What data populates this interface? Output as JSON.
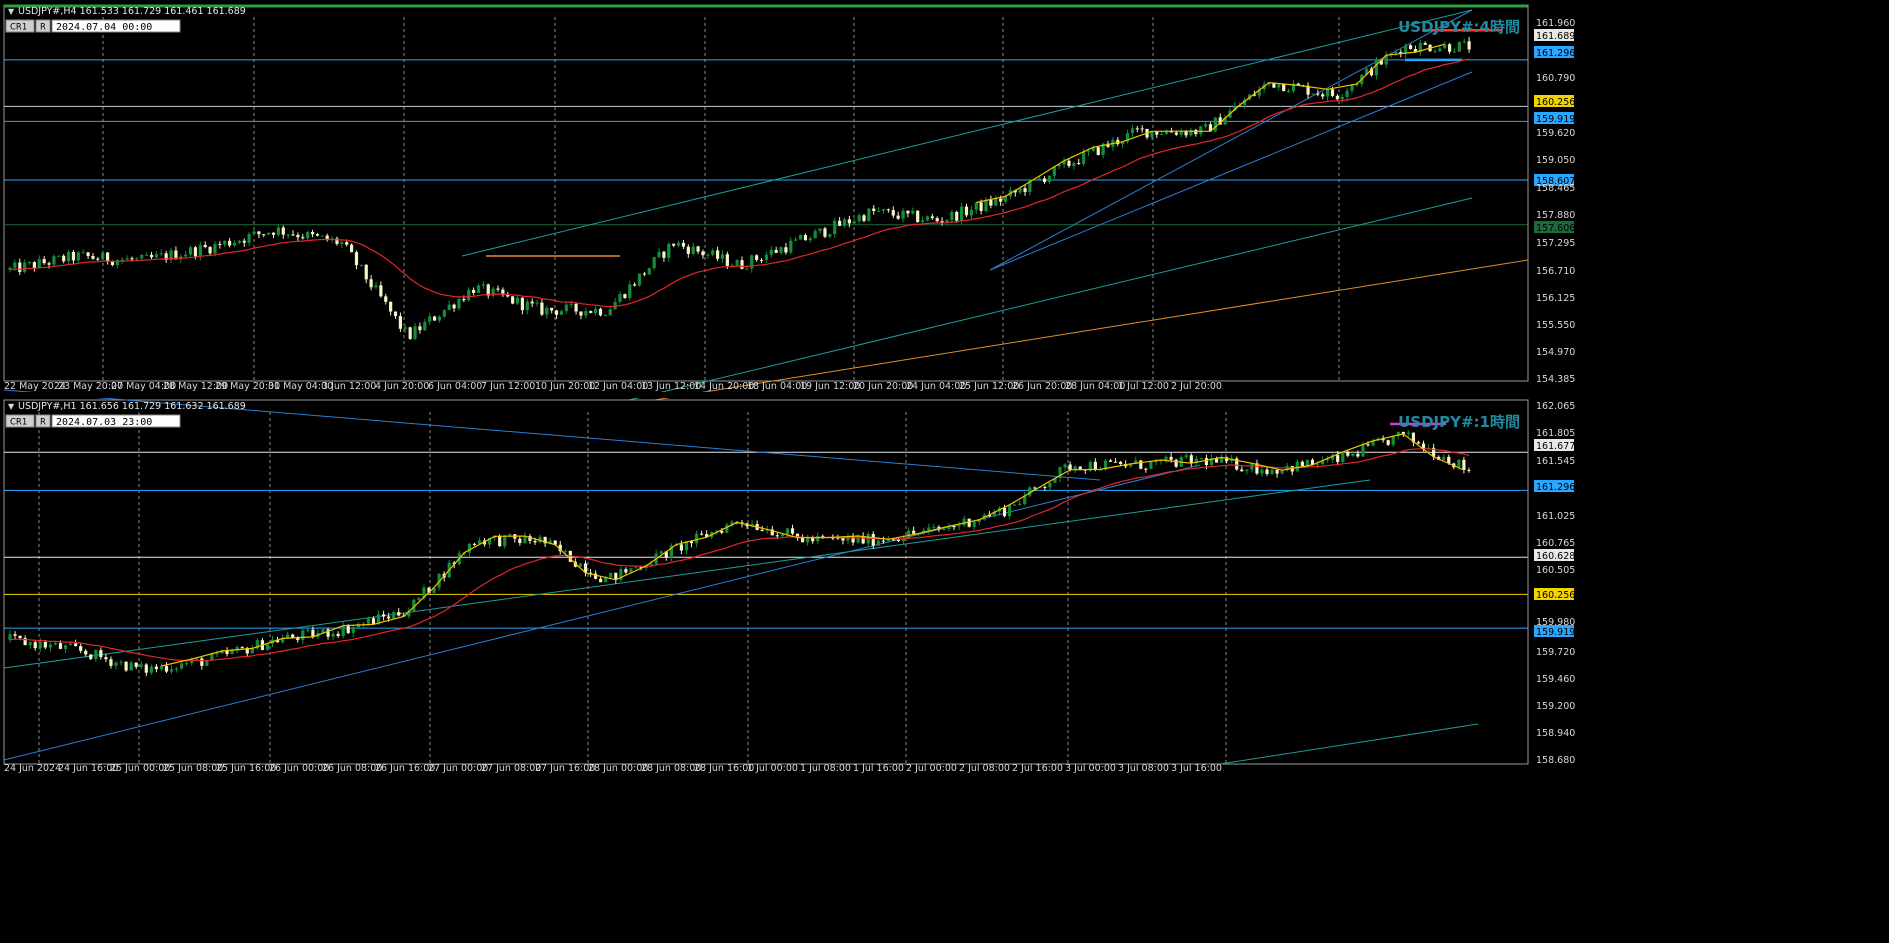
{
  "panels": [
    {
      "id": "h4",
      "header": "USDJPY#,H4  161.533 161.729 161.461 161.689",
      "badge_a": "CR1",
      "badge_b": "R",
      "time_box": "2024.07.04 00:00",
      "watermark": "USDJPY#:4時間",
      "price_labels": [
        "161.960",
        "161.689",
        "161.296",
        "160.790",
        "160.256",
        "159.919",
        "159.620",
        "159.050",
        "158.607",
        "158.465",
        "157.880",
        "157.606",
        "157.295",
        "156.710",
        "156.125",
        "155.550",
        "154.970",
        "154.385"
      ],
      "x_labels": [
        "22 May 2024",
        "23 May 20:00",
        "27 May 04:00",
        "28 May 12:00",
        "29 May 20:00",
        "31 May 04:00",
        "3 Jun 12:00",
        "4 Jun 20:00",
        "6 Jun 04:00",
        "7 Jun 12:00",
        "10 Jun 20:00",
        "12 Jun 04:00",
        "13 Jun 12:00",
        "14 Jun 20:00",
        "18 Jun 04:00",
        "19 Jun 12:00",
        "20 Jun 20:00",
        "24 Jun 04:00",
        "25 Jun 12:00",
        "26 Jun 20:00",
        "28 Jun 04:00",
        "1 Jul 12:00",
        "2 Jul 20:00"
      ]
    },
    {
      "id": "h1",
      "header": "USDJPY#,H1  161.656 161.729 161.632 161.689",
      "badge_a": "CR1",
      "badge_b": "R",
      "time_box": "2024.07.03 23:00",
      "watermark": "USDJPY#:1時間",
      "price_labels": [
        "162.065",
        "161.805",
        "161.677",
        "161.545",
        "161.296",
        "161.025",
        "160.765",
        "160.628",
        "160.505",
        "160.256",
        "159.980",
        "159.919",
        "159.720",
        "159.460",
        "159.200",
        "158.940",
        "158.680"
      ],
      "x_labels": [
        "24 Jun 2024",
        "24 Jun 16:00",
        "25 Jun 00:00",
        "25 Jun 08:00",
        "25 Jun 16:00",
        "26 Jun 00:00",
        "26 Jun 08:00",
        "26 Jun 16:00",
        "27 Jun 00:00",
        "27 Jun 08:00",
        "27 Jun 16:00",
        "28 Jun 00:00",
        "28 Jun 08:00",
        "28 Jun 16:00",
        "1 Jul 00:00",
        "1 Jul 08:00",
        "1 Jul 16:00",
        "2 Jul 00:00",
        "2 Jul 08:00",
        "2 Jul 16:00",
        "3 Jul 00:00",
        "3 Jul 08:00",
        "3 Jul 16:00"
      ]
    }
  ],
  "chart_data": [
    {
      "type": "candlestick",
      "symbol": "USDJPY#",
      "timeframe": "H4",
      "ylim": [
        154.2,
        162.3
      ],
      "grid": true,
      "close_path": [
        [
          "22 May 2024",
          156.6
        ],
        [
          "23 May 20:00",
          156.9
        ],
        [
          "27 May 04:00",
          156.8
        ],
        [
          "28 May 12:00",
          157.1
        ],
        [
          "29 May 20:00",
          157.5
        ],
        [
          "31 May 04:00",
          157.2
        ],
        [
          "3 Jun 12:00",
          155.1
        ],
        [
          "4 Jun 20:00",
          156.2
        ],
        [
          "6 Jun 04:00",
          155.7
        ],
        [
          "7 Jun 12:00",
          155.7
        ],
        [
          "10 Jun 20:00",
          157.2
        ],
        [
          "12 Jun 04:00",
          156.7
        ],
        [
          "13 Jun 12:00",
          157.3
        ],
        [
          "14 Jun 20:00",
          157.9
        ],
        [
          "18 Jun 04:00",
          157.7
        ],
        [
          "19 Jun 12:00",
          158.2
        ],
        [
          "20 Jun 20:00",
          159.0
        ],
        [
          "24 Jun 04:00",
          159.7
        ],
        [
          "25 Jun 12:00",
          159.7
        ],
        [
          "26 Jun 20:00",
          160.8
        ],
        [
          "28 Jun 04:00",
          160.5
        ],
        [
          "1 Jul 12:00",
          161.6
        ],
        [
          "2 Jul 20:00",
          161.6
        ]
      ],
      "horizontal_levels": [
        {
          "price": 161.296,
          "color": "#2aa6ff"
        },
        {
          "price": 160.256,
          "color": "#cfcfcf"
        },
        {
          "price": 159.919,
          "color": "#2aa6ff"
        },
        {
          "price": 158.607,
          "color": "#2aa6ff"
        },
        {
          "price": 157.606,
          "color": "#1a6b3a"
        }
      ],
      "marker_levels": [
        {
          "price": 161.96,
          "color": "#ff3b2f"
        },
        {
          "price": 161.296,
          "color": "#2aa6ff"
        }
      ]
    },
    {
      "type": "candlestick",
      "symbol": "USDJPY#",
      "timeframe": "H1",
      "ylim": [
        158.6,
        162.1
      ],
      "grid": true,
      "close_path": [
        [
          "24 Jun 2024",
          159.8
        ],
        [
          "24 Jun 16:00",
          159.7
        ],
        [
          "25 Jun 00:00",
          159.5
        ],
        [
          "25 Jun 08:00",
          159.6
        ],
        [
          "25 Jun 16:00",
          159.8
        ],
        [
          "26 Jun 00:00",
          159.9
        ],
        [
          "26 Jun 08:00",
          160.1
        ],
        [
          "26 Jun 16:00",
          160.8
        ],
        [
          "27 Jun 00:00",
          160.8
        ],
        [
          "27 Jun 08:00",
          160.4
        ],
        [
          "27 Jun 16:00",
          160.7
        ],
        [
          "28 Jun 00:00",
          161.0
        ],
        [
          "28 Jun 08:00",
          160.8
        ],
        [
          "28 Jun 16:00",
          160.8
        ],
        [
          "1 Jul 00:00",
          160.9
        ],
        [
          "1 Jul 08:00",
          161.1
        ],
        [
          "1 Jul 16:00",
          161.55
        ],
        [
          "2 Jul 00:00",
          161.55
        ],
        [
          "2 Jul 08:00",
          161.6
        ],
        [
          "2 Jul 16:00",
          161.5
        ],
        [
          "3 Jul 00:00",
          161.6
        ],
        [
          "3 Jul 08:00",
          161.85
        ],
        [
          "3 Jul 16:00",
          161.5
        ]
      ],
      "horizontal_levels": [
        {
          "price": 161.677,
          "color": "#e8e8e8"
        },
        {
          "price": 161.296,
          "color": "#2aa6ff"
        },
        {
          "price": 160.628,
          "color": "#e8e8e8"
        },
        {
          "price": 160.256,
          "color": "#f2d200"
        },
        {
          "price": 159.919,
          "color": "#2aa6ff"
        }
      ],
      "marker_levels": [
        {
          "price": 161.96,
          "color": "#d63bd6"
        }
      ]
    }
  ],
  "colors": {
    "bull": "#138f3a",
    "bear": "#f4f4c8",
    "ma": "#e3262a",
    "zigzag": "#f1c300",
    "grid": "#bdbdbd",
    "watermark": "#1f8aa0",
    "frame_green": "#2ea043"
  }
}
